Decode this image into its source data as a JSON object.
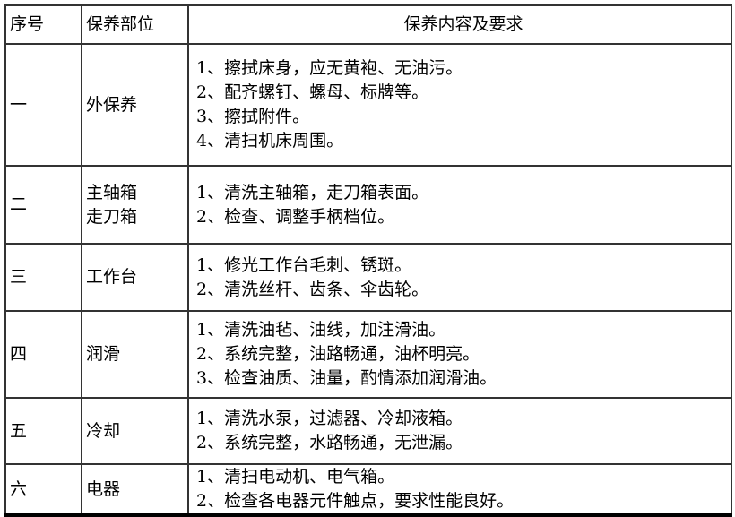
{
  "headers": {
    "no": "序号",
    "part": "保养部位",
    "content": "保养内容及要求"
  },
  "rows": [
    {
      "no": "一",
      "part": [
        "外保养"
      ],
      "items": [
        "1、擦拭床身，应无黄袍、无油污。",
        "2、配齐螺钉、螺母、标牌等。",
        "3、擦拭附件。",
        "4、清扫机床周围。"
      ]
    },
    {
      "no": "二",
      "part": [
        "主轴箱",
        "走刀箱"
      ],
      "items": [
        "1、清洗主轴箱，走刀箱表面。",
        "2、检查、调整手柄档位。"
      ]
    },
    {
      "no": "三",
      "part": [
        "工作台"
      ],
      "items": [
        "1、修光工作台毛刺、锈斑。",
        "2、清洗丝杆、齿条、伞齿轮。"
      ]
    },
    {
      "no": "四",
      "part": [
        "润滑"
      ],
      "items": [
        "1、清洗油毡、油线，加注滑油。",
        "2、系统完整，油路畅通，油杯明亮。",
        "3、检查油质、油量，酌情添加润滑油。"
      ]
    },
    {
      "no": "五",
      "part": [
        "冷却"
      ],
      "items": [
        "1、清洗水泵，过滤器、冷却液箱。",
        "2、系统完整，水路畅通，无泄漏。"
      ]
    },
    {
      "no": "六",
      "part": [
        "电器"
      ],
      "items": [
        "1、清扫电动机、电气箱。",
        "2、检查各电器元件触点，要求性能良好。"
      ]
    }
  ]
}
